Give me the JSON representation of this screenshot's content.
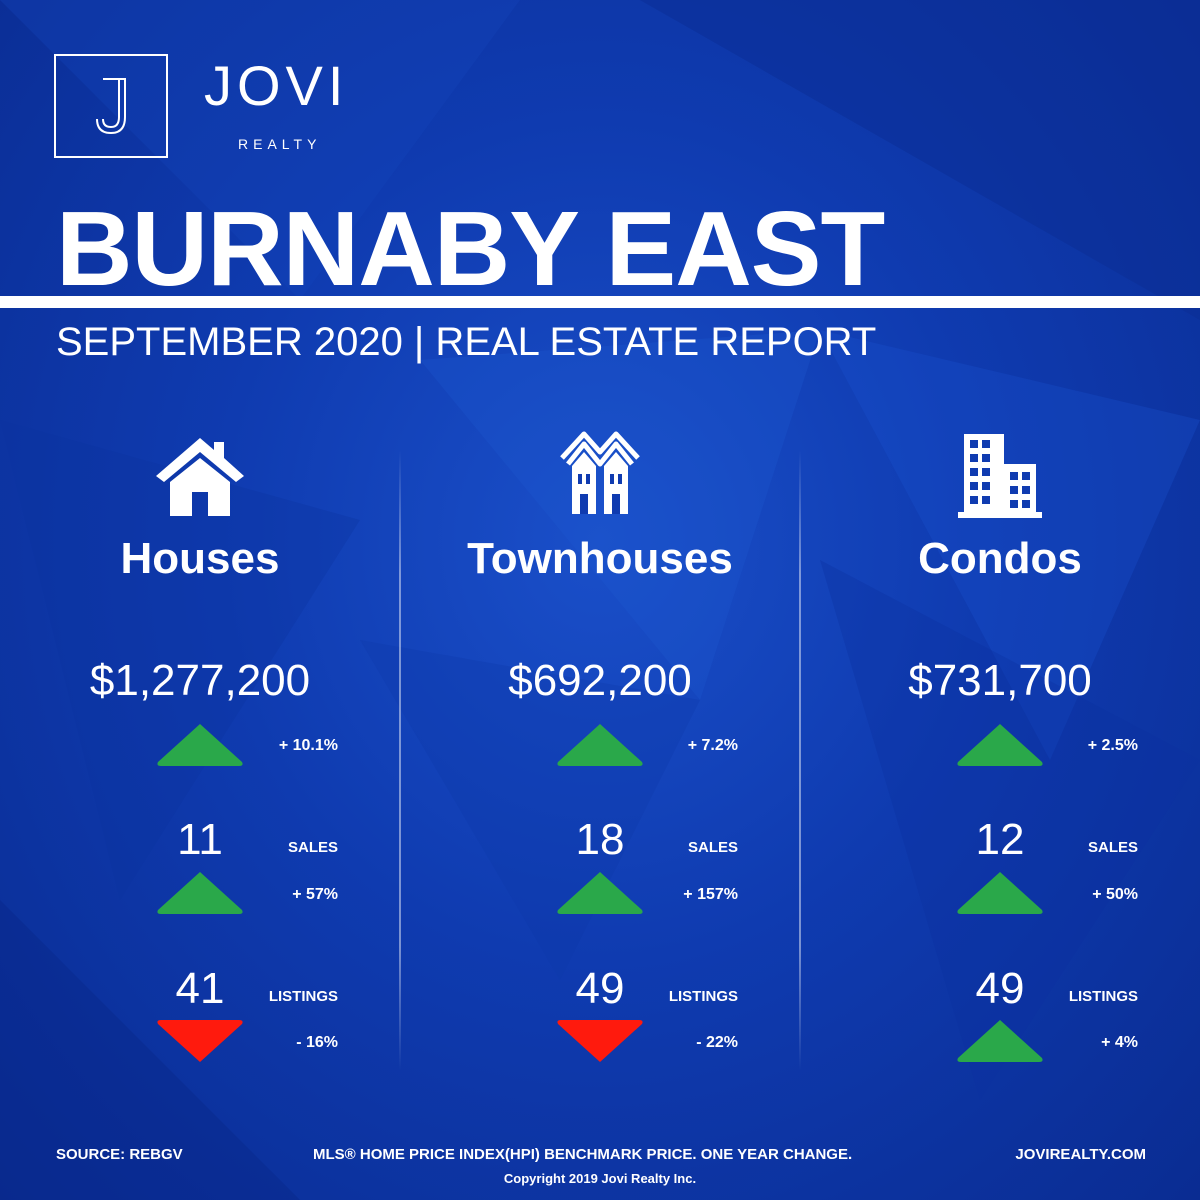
{
  "brand": {
    "name": "JOVI",
    "sub": "REALTY",
    "monogram": "J"
  },
  "header": {
    "title": "BURNABY EAST",
    "subtitle": "SEPTEMBER 2020 | REAL ESTATE REPORT"
  },
  "colors": {
    "background": "#0f3bb0",
    "up": "#2aa84a",
    "down": "#ff1a0d"
  },
  "categories": [
    {
      "icon": "house-icon",
      "name": "Houses",
      "price": "$1,277,200",
      "price_change": "+ 10.1%",
      "price_dir": "up",
      "sales_value": "11",
      "sales_label": "SALES",
      "sales_change": "+ 57%",
      "sales_dir": "up",
      "listings_value": "41",
      "listings_label": "LISTINGS",
      "listings_change": "- 16%",
      "listings_dir": "down"
    },
    {
      "icon": "townhouse-icon",
      "name": "Townhouses",
      "price": "$692,200",
      "price_change": "+ 7.2%",
      "price_dir": "up",
      "sales_value": "18",
      "sales_label": "SALES",
      "sales_change": "+ 157%",
      "sales_dir": "up",
      "listings_value": "49",
      "listings_label": "LISTINGS",
      "listings_change": "- 22%",
      "listings_dir": "down"
    },
    {
      "icon": "condo-building-icon",
      "name": "Condos",
      "price": "$731,700",
      "price_change": "+ 2.5%",
      "price_dir": "up",
      "sales_value": "12",
      "sales_label": "SALES",
      "sales_change": "+ 50%",
      "sales_dir": "up",
      "listings_value": "49",
      "listings_label": "LISTINGS",
      "listings_change": "+ 4%",
      "listings_dir": "up"
    }
  ],
  "footer": {
    "source": "SOURCE:  REBGV",
    "note": "MLS® HOME PRICE INDEX(HPI) BENCHMARK PRICE. ONE YEAR CHANGE.",
    "website": "JOVIREALTY.COM",
    "copyright": "Copyright 2019 Jovi Realty Inc."
  }
}
